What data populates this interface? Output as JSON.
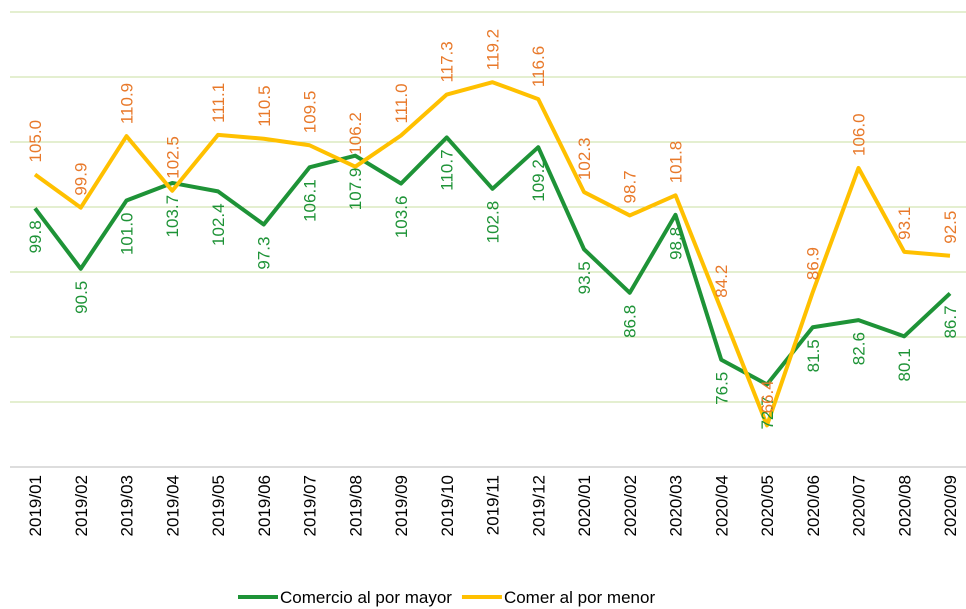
{
  "chart_data": {
    "type": "line",
    "categories": [
      "2019/01",
      "2019/02",
      "2019/03",
      "2019/04",
      "2019/05",
      "2019/06",
      "2019/07",
      "2019/08",
      "2019/09",
      "2019/10",
      "2019/11",
      "2019/12",
      "2020/01",
      "2020/02",
      "2020/03",
      "2020/04",
      "2020/05",
      "2020/06",
      "2020/07",
      "2020/08",
      "2020/09"
    ],
    "series": [
      {
        "name": "Comercio al por mayor",
        "color": "#1e9337",
        "label_color": "#1e9337",
        "label_side": "below",
        "values": [
          99.8,
          90.5,
          101.0,
          103.7,
          102.4,
          97.3,
          106.1,
          107.9,
          103.6,
          110.7,
          102.8,
          109.2,
          93.5,
          86.8,
          98.8,
          76.5,
          72.7,
          81.5,
          82.6,
          80.1,
          86.7
        ],
        "value_labels": [
          "99.8",
          "90.5",
          "101.0",
          "103.7",
          "102.4",
          "97.3",
          "106.1",
          "107.9",
          "103.6",
          "110.7",
          "102.8",
          "109.2",
          "93.5",
          "86.8",
          "98.8",
          "76.5",
          "72.7",
          "81.5",
          "82.6",
          "80.1",
          "86.7"
        ]
      },
      {
        "name": "Comer al por menor",
        "color": "#ffc000",
        "label_color": "#e8792a",
        "label_side": "above",
        "values": [
          105.0,
          99.9,
          110.9,
          102.5,
          111.1,
          110.5,
          109.5,
          106.2,
          111.0,
          117.3,
          119.2,
          116.6,
          102.3,
          98.7,
          101.8,
          84.2,
          66.4,
          86.9,
          106.0,
          93.1,
          92.5
        ],
        "value_labels": [
          "105.0",
          "99.9",
          "110.9",
          "102.5",
          "111.1",
          "110.5",
          "109.5",
          "106.2",
          "111.0",
          "117.3",
          "119.2",
          "116.6",
          "102.3",
          "98.7",
          "101.8",
          "84.2",
          "66.4",
          "86.9",
          "106.0",
          "93.1",
          "92.5"
        ]
      }
    ],
    "ylim": [
      60,
      130
    ],
    "yticks": [
      60,
      70,
      80,
      90,
      100,
      110,
      120,
      130
    ],
    "ytick_labels": false,
    "grid": true,
    "legend": "bottom"
  }
}
